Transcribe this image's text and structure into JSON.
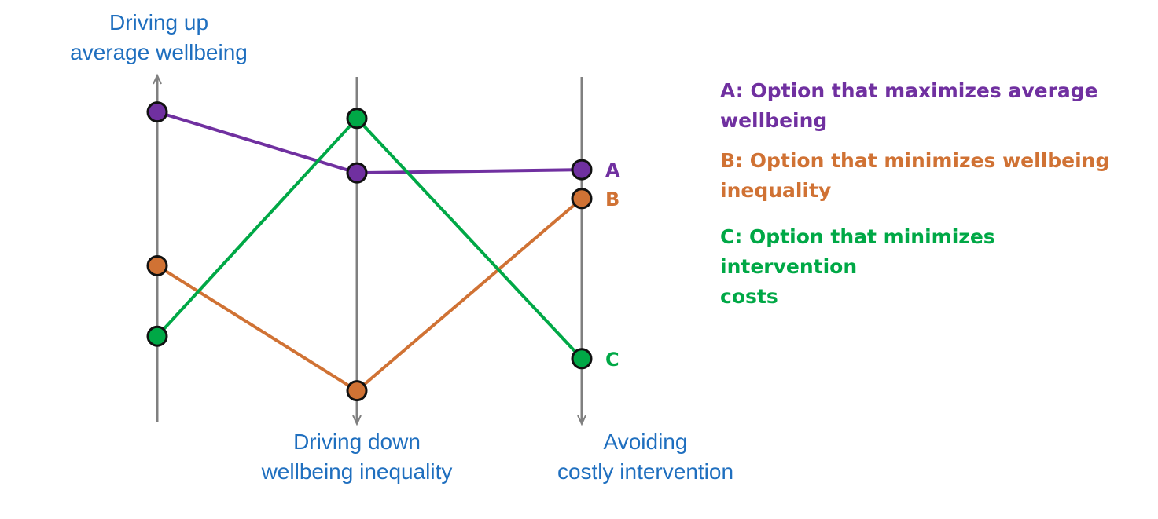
{
  "chart_data": {
    "type": "parallel-coordinates",
    "axes": [
      {
        "key": "average_wellbeing",
        "label_line1": "Driving up",
        "label_line2": "average wellbeing",
        "direction": "up"
      },
      {
        "key": "wellbeing_inequality",
        "label_line1": "Driving down",
        "label_line2": "wellbeing inequality",
        "direction": "down"
      },
      {
        "key": "intervention_cost",
        "label_line1": "Avoiding",
        "label_line2": "costly intervention",
        "direction": "down"
      }
    ],
    "value_range": [
      0,
      1
    ],
    "series": [
      {
        "name": "A",
        "color": "#7030a0",
        "values": [
          0.92,
          0.73,
          0.74
        ],
        "legend_line1": "A: Option that maximizes average",
        "legend_line2": "wellbeing"
      },
      {
        "name": "B",
        "color": "#d07234",
        "values": [
          0.44,
          0.05,
          0.65
        ],
        "legend_line1": "B: Option that minimizes wellbeing",
        "legend_line2": "inequality"
      },
      {
        "name": "C",
        "color": "#00a846",
        "values": [
          0.22,
          0.9,
          0.15
        ],
        "legend_line1": "C: Option that minimizes intervention",
        "legend_line2": "costs"
      }
    ],
    "grid": false,
    "legend_position": "right"
  },
  "colors": {
    "axis": "#808080",
    "axis_title": "#1f6fbf",
    "marker_outline": "#111111"
  }
}
